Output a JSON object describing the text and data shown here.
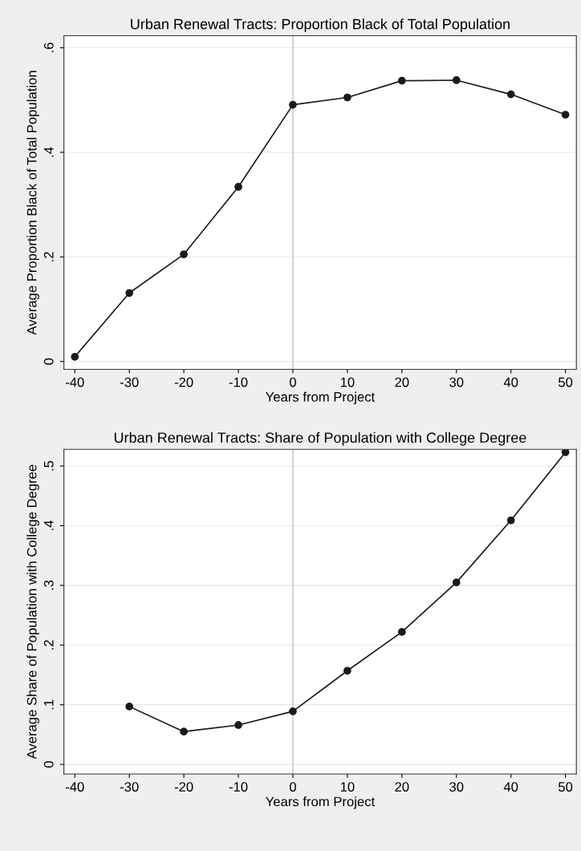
{
  "chart_data": [
    {
      "type": "line",
      "title": "Urban Renewal Tracts: Proportion Black of Total Population",
      "xlabel": "Years from Project",
      "ylabel": "Average Proportion Black of Total Population",
      "x": [
        -40,
        -30,
        -20,
        -10,
        0,
        10,
        20,
        30,
        40,
        50
      ],
      "series": [
        {
          "color": "#1a1a1a",
          "values": [
            0.009,
            0.131,
            0.205,
            0.334,
            0.491,
            0.505,
            0.537,
            0.538,
            0.511,
            0.472
          ]
        }
      ],
      "xlim": [
        -42,
        52
      ],
      "xticks": [
        -40,
        -30,
        -20,
        -10,
        0,
        10,
        20,
        30,
        40,
        50
      ],
      "ylim": [
        -0.015,
        0.623
      ],
      "yticks": [
        {
          "value": 0,
          "label": "0"
        },
        {
          "value": 0.2,
          "label": ".2"
        },
        {
          "value": 0.4,
          "label": ".4"
        },
        {
          "value": 0.6,
          "label": ".6"
        }
      ],
      "grid": "y",
      "marker": "circle",
      "line_style": "solid",
      "ref_lines": [
        {
          "axis": "x",
          "value": 0,
          "label": null,
          "color": "#cccccc"
        }
      ]
    },
    {
      "type": "line",
      "title": "Urban Renewal Tracts: Share of Population with College Degree",
      "xlabel": "Years from Project",
      "ylabel": "Average Share of Population with College Degree",
      "x": [
        -30,
        -20,
        -10,
        0,
        10,
        20,
        30,
        40,
        50
      ],
      "series": [
        {
          "color": "#1a1a1a",
          "values": [
            0.097,
            0.055,
            0.066,
            0.089,
            0.157,
            0.222,
            0.305,
            0.409,
            0.523
          ]
        }
      ],
      "xlim": [
        -42,
        52
      ],
      "xticks": [
        -40,
        -30,
        -20,
        -10,
        0,
        10,
        20,
        30,
        40,
        50
      ],
      "ylim": [
        -0.016,
        0.528
      ],
      "yticks": [
        {
          "value": 0,
          "label": "0"
        },
        {
          "value": 0.1,
          "label": ".1"
        },
        {
          "value": 0.2,
          "label": ".2"
        },
        {
          "value": 0.3,
          "label": ".3"
        },
        {
          "value": 0.4,
          "label": ".4"
        },
        {
          "value": 0.5,
          "label": ".5"
        }
      ],
      "grid": "y",
      "marker": "circle",
      "line_style": "solid",
      "ref_lines": [
        {
          "axis": "x",
          "value": 0,
          "label": null,
          "color": "#cccccc"
        }
      ]
    }
  ]
}
